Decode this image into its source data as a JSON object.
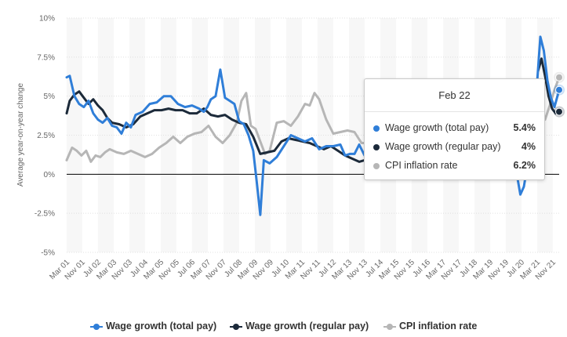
{
  "chart_data": {
    "type": "line",
    "title": "",
    "xlabel": "",
    "ylabel": "Average year-on-year change",
    "ylim": [
      -5,
      10
    ],
    "y_ticks": [
      "10%",
      "7.5%",
      "5%",
      "2.5%",
      "0%",
      "-2.5%",
      "-5%"
    ],
    "y_tick_values": [
      10,
      7.5,
      5,
      2.5,
      0,
      -2.5,
      -5
    ],
    "x_range": [
      2001.17,
      2022.1
    ],
    "x_ticks": [
      "Mar 01",
      "Nov 01",
      "Jul 02",
      "Mar 03",
      "Nov 03",
      "Jul 04",
      "Mar 05",
      "Nov 05",
      "Jul 06",
      "Mar 07",
      "Nov 07",
      "Jul 08",
      "Mar 09",
      "Nov 09",
      "Jul 10",
      "Mar 11",
      "Nov 11",
      "Jul 12",
      "Mar 13",
      "Nov 13",
      "Jul 14",
      "Mar 15",
      "Nov 15",
      "Jul 16",
      "Mar 17",
      "Nov 17",
      "Jul 18",
      "Mar 19",
      "Nov 19",
      "Jul 20",
      "Mar 21",
      "Nov 21"
    ],
    "x_tick_values": [
      2001.17,
      2001.83,
      2002.5,
      2003.17,
      2003.83,
      2004.5,
      2005.17,
      2005.83,
      2006.5,
      2007.17,
      2007.83,
      2008.5,
      2009.17,
      2009.83,
      2010.5,
      2011.17,
      2011.83,
      2012.5,
      2013.17,
      2013.83,
      2014.5,
      2015.17,
      2015.83,
      2016.5,
      2017.17,
      2017.83,
      2018.5,
      2019.17,
      2019.83,
      2020.5,
      2021.17,
      2021.83
    ],
    "series": [
      {
        "name": "Wage growth (total pay)",
        "color": "#2f7ed8",
        "x": [
          2001.17,
          2001.3,
          2001.5,
          2001.7,
          2001.9,
          2002.1,
          2002.3,
          2002.5,
          2002.7,
          2002.9,
          2003.1,
          2003.3,
          2003.5,
          2003.7,
          2003.9,
          2004.1,
          2004.4,
          2004.7,
          2005.0,
          2005.3,
          2005.6,
          2005.9,
          2006.2,
          2006.5,
          2006.8,
          2007.0,
          2007.15,
          2007.3,
          2007.5,
          2007.7,
          2007.9,
          2008.1,
          2008.3,
          2008.5,
          2008.7,
          2008.9,
          2009.1,
          2009.25,
          2009.4,
          2009.55,
          2009.8,
          2010.1,
          2010.4,
          2010.7,
          2011.0,
          2011.3,
          2011.6,
          2011.9,
          2012.2,
          2012.5,
          2012.8,
          2013.0,
          2013.2,
          2013.4,
          2013.6,
          2013.83
        ],
        "values": [
          6.2,
          6.3,
          5.0,
          4.5,
          4.3,
          4.7,
          3.9,
          3.5,
          3.3,
          3.6,
          3.1,
          3.0,
          2.6,
          3.3,
          3.0,
          3.8,
          4.0,
          4.5,
          4.6,
          5.0,
          5.0,
          4.5,
          4.3,
          4.4,
          4.2,
          4.0,
          4.3,
          4.8,
          5.0,
          6.7,
          4.9,
          4.7,
          4.5,
          3.4,
          3.2,
          2.5,
          1.5,
          -0.5,
          -2.6,
          0.9,
          0.7,
          1.1,
          1.8,
          2.5,
          2.3,
          2.1,
          2.3,
          1.6,
          1.8,
          1.8,
          1.9,
          1.2,
          1.3,
          1.3,
          1.9,
          1.2
        ]
      },
      {
        "name": "Wage growth (regular pay)",
        "color": "#1c2a3a",
        "x": [
          2001.17,
          2001.3,
          2001.5,
          2001.7,
          2001.9,
          2002.1,
          2002.3,
          2002.5,
          2002.7,
          2002.9,
          2003.1,
          2003.4,
          2003.7,
          2004.0,
          2004.3,
          2004.6,
          2004.9,
          2005.2,
          2005.5,
          2005.8,
          2006.1,
          2006.4,
          2006.7,
          2007.0,
          2007.3,
          2007.6,
          2007.9,
          2008.2,
          2008.5,
          2008.8,
          2009.1,
          2009.4,
          2009.7,
          2010.0,
          2010.3,
          2010.6,
          2010.9,
          2011.2,
          2011.5,
          2011.8,
          2012.1,
          2012.4,
          2012.7,
          2013.0,
          2013.3,
          2013.6,
          2013.83
        ],
        "values": [
          3.9,
          4.7,
          5.1,
          5.3,
          4.9,
          4.5,
          4.8,
          4.4,
          4.1,
          3.6,
          3.3,
          3.2,
          3.0,
          3.2,
          3.7,
          3.9,
          4.1,
          4.1,
          4.2,
          4.1,
          4.1,
          3.9,
          3.9,
          4.2,
          3.8,
          3.7,
          3.8,
          3.5,
          3.3,
          3.2,
          2.4,
          1.3,
          1.4,
          1.5,
          2.1,
          2.3,
          2.2,
          2.1,
          2.0,
          1.8,
          1.6,
          1.8,
          1.5,
          1.2,
          1.0,
          0.8,
          0.9
        ]
      },
      {
        "name": "CPI inflation rate",
        "color": "#b6b6b6",
        "x": [
          2001.17,
          2001.4,
          2001.6,
          2001.8,
          2002.0,
          2002.2,
          2002.4,
          2002.6,
          2002.8,
          2003.0,
          2003.3,
          2003.6,
          2003.9,
          2004.2,
          2004.5,
          2004.8,
          2005.1,
          2005.4,
          2005.7,
          2006.0,
          2006.3,
          2006.6,
          2006.9,
          2007.2,
          2007.5,
          2007.8,
          2008.1,
          2008.4,
          2008.6,
          2008.8,
          2009.0,
          2009.2,
          2009.4,
          2009.6,
          2009.8,
          2010.1,
          2010.4,
          2010.7,
          2011.0,
          2011.3,
          2011.5,
          2011.7,
          2011.9,
          2012.2,
          2012.5,
          2012.8,
          2013.1,
          2013.4,
          2013.7,
          2013.83
        ],
        "values": [
          0.9,
          1.7,
          1.5,
          1.2,
          1.5,
          0.8,
          1.2,
          1.1,
          1.4,
          1.6,
          1.4,
          1.3,
          1.5,
          1.3,
          1.1,
          1.3,
          1.7,
          2.0,
          2.4,
          2.0,
          2.4,
          2.6,
          2.7,
          3.1,
          2.4,
          2.0,
          2.5,
          3.3,
          4.7,
          5.2,
          3.1,
          2.9,
          2.1,
          1.3,
          1.5,
          3.3,
          3.4,
          3.1,
          3.7,
          4.5,
          4.4,
          5.2,
          4.8,
          3.5,
          2.6,
          2.7,
          2.8,
          2.7,
          2.0,
          2.0
        ]
      }
    ],
    "right_series": [
      {
        "name": "Wage growth (total pay)",
        "x": [
          2019.95,
          2020.1,
          2020.3,
          2020.45,
          2020.6,
          2020.8,
          2021.0,
          2021.15,
          2021.3,
          2021.45,
          2021.6,
          2021.75,
          2021.9,
          2022.1
        ],
        "values": [
          3.0,
          1.5,
          0.0,
          -1.3,
          -0.8,
          1.0,
          3.2,
          5.6,
          8.8,
          7.9,
          6.0,
          4.9,
          4.3,
          5.4
        ]
      },
      {
        "name": "Wage growth (regular pay)",
        "x": [
          2021.2,
          2021.35,
          2021.5,
          2021.65,
          2021.8,
          2021.95,
          2022.1
        ],
        "values": [
          6.6,
          7.4,
          6.3,
          5.0,
          4.2,
          3.9,
          4.0
        ]
      },
      {
        "name": "CPI inflation rate",
        "x": [
          2021.5,
          2021.7,
          2021.9,
          2022.1
        ],
        "values": [
          3.5,
          4.4,
          5.4,
          6.2
        ]
      }
    ]
  },
  "tooltip": {
    "title": "Feb 22",
    "rows": [
      {
        "name": "Wage growth (total pay)",
        "value": "5.4%",
        "color": "#2f7ed8"
      },
      {
        "name": "Wage growth (regular pay)",
        "value": "4%",
        "color": "#1c2a3a"
      },
      {
        "name": "CPI inflation rate",
        "value": "6.2%",
        "color": "#b6b6b6"
      }
    ]
  },
  "legend": [
    {
      "label": "Wage growth (total pay)",
      "color": "#2f7ed8"
    },
    {
      "label": "Wage growth (regular pay)",
      "color": "#1c2a3a"
    },
    {
      "label": "CPI inflation rate",
      "color": "#b6b6b6"
    }
  ]
}
